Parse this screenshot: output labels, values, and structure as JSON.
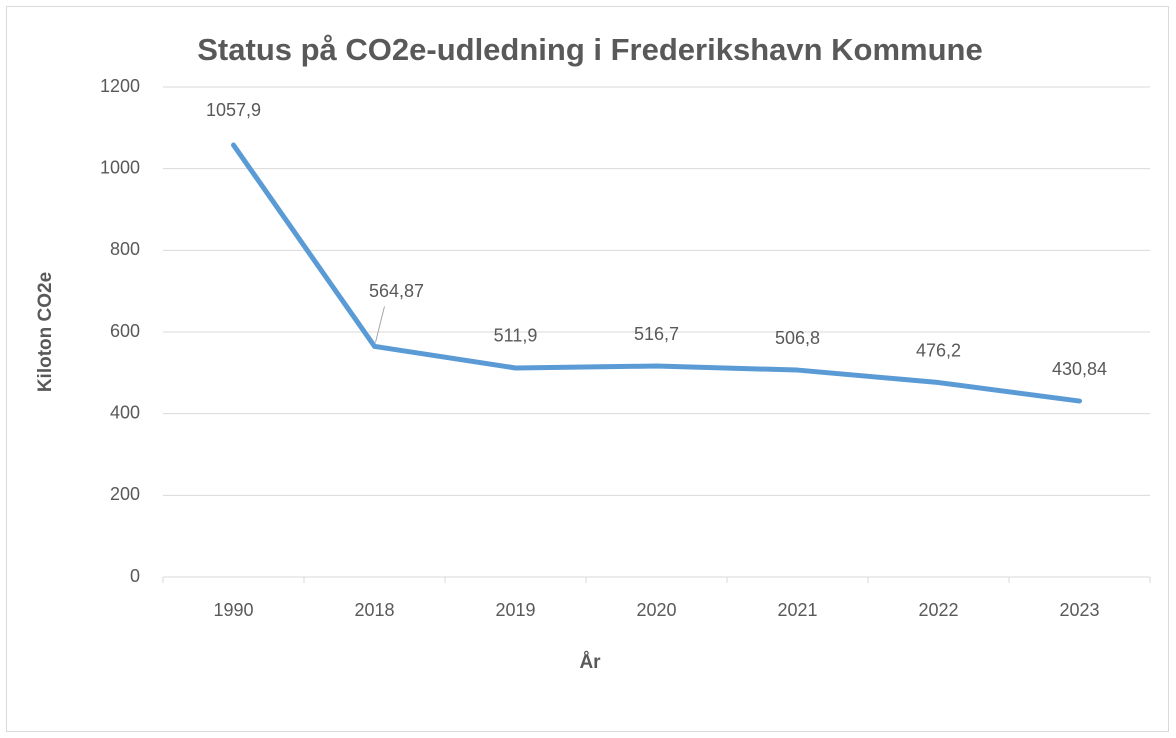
{
  "chart_data": {
    "type": "line",
    "title": "Status på CO2e-udledning i Frederikshavn Kommune",
    "x_label": "År",
    "y_label": "Kiloton CO2e",
    "categories": [
      "1990",
      "2018",
      "2019",
      "2020",
      "2021",
      "2022",
      "2023"
    ],
    "series": [
      {
        "name": "Kiloton CO2e",
        "color": "#5b9bd5",
        "values": [
          1057.9,
          564.87,
          511.9,
          516.7,
          506.8,
          476.2,
          430.84
        ],
        "value_labels": [
          "1057,9",
          "564,87",
          "511,9",
          "516,7",
          "506,8",
          "476,2",
          "430,84"
        ]
      }
    ],
    "ylim": [
      0,
      1200
    ],
    "yticks": [
      0,
      200,
      400,
      600,
      800,
      1000,
      1200
    ],
    "grid": true
  }
}
